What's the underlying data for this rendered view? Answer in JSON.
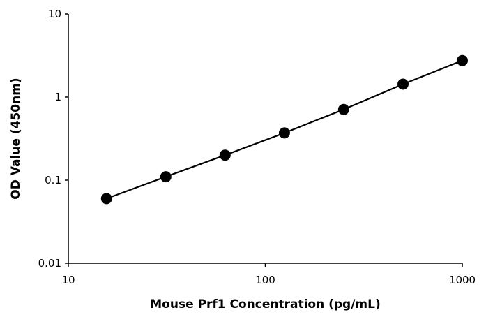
{
  "chart_data": {
    "type": "scatter",
    "xlabel": "Mouse Prf1 Concentration (pg/mL)",
    "ylabel": "OD Value (450nm)",
    "x_scale": "log",
    "y_scale": "log",
    "xlim": [
      10,
      1000
    ],
    "ylim": [
      0.01,
      10
    ],
    "x_ticks": [
      10,
      100,
      1000
    ],
    "x_tick_labels": [
      "10",
      "100",
      "1000"
    ],
    "y_ticks": [
      0.01,
      0.1,
      1,
      10
    ],
    "y_tick_labels": [
      "0.01",
      "0.1",
      "1",
      "10"
    ],
    "grid": false,
    "legend": "none",
    "series": [
      {
        "x": [
          15.625,
          31.25,
          62.5,
          125,
          250,
          500,
          1000
        ],
        "y": [
          0.06,
          0.11,
          0.2,
          0.37,
          0.71,
          1.43,
          2.75
        ],
        "line": true,
        "color": "#000000"
      }
    ]
  }
}
